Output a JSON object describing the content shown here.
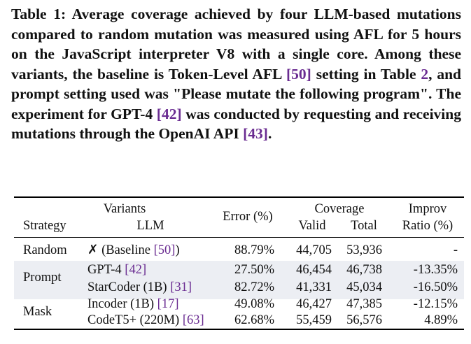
{
  "caption": {
    "parts": [
      {
        "text": "Table 1: Average coverage achieved by four LLM-based mutations compared to random mutation was measured using AFL for 5 hours on the JavaScript interpreter V8 with a single core. Among these variants, the baseline is Token-Level AFL ",
        "cite": false
      },
      {
        "text": "[50]",
        "cite": true
      },
      {
        "text": " setting in Table ",
        "cite": false
      },
      {
        "text": "2",
        "cite": true
      },
      {
        "text": ", and prompt setting used was \"Please mutate the following program\". The experiment for GPT-4 ",
        "cite": false
      },
      {
        "text": "[42]",
        "cite": true
      },
      {
        "text": " was conducted by requesting and receiving mutations through the OpenAI API ",
        "cite": false
      },
      {
        "text": "[43]",
        "cite": true
      },
      {
        "text": ".",
        "cite": false
      }
    ]
  },
  "table": {
    "headers": {
      "variants": "Variants",
      "strategy": "Strategy",
      "llm": "LLM",
      "error": "Error (%)",
      "coverage": "Coverage",
      "valid": "Valid",
      "total": "Total",
      "improv": "Improv",
      "ratio": "Ratio (%)"
    },
    "groups": {
      "random": "Random",
      "prompt": "Prompt",
      "mask": "Mask"
    },
    "rows": [
      {
        "llm": "✗ (Baseline ",
        "cite": "[50]",
        "llm_tail": ")",
        "error": "88.79%",
        "valid": "44,705",
        "total": "53,936",
        "ratio": "-"
      },
      {
        "llm": "GPT-4 ",
        "cite": "[42]",
        "llm_tail": "",
        "error": "27.50%",
        "valid": "46,454",
        "total": "46,738",
        "ratio": "-13.35%"
      },
      {
        "llm": "StarCoder (1B) ",
        "cite": "[31]",
        "llm_tail": "",
        "error": "82.72%",
        "valid": "41,331",
        "total": "45,034",
        "ratio": "-16.50%"
      },
      {
        "llm": "Incoder (1B) ",
        "cite": "[17]",
        "llm_tail": "",
        "error": "49.08%",
        "valid": "46,427",
        "total": "47,385",
        "ratio": "-12.15%"
      },
      {
        "llm": "CodeT5+ (220M) ",
        "cite": "[63]",
        "llm_tail": "",
        "error": "62.68%",
        "valid": "55,459",
        "total": "56,576",
        "ratio": "4.89%"
      }
    ]
  }
}
